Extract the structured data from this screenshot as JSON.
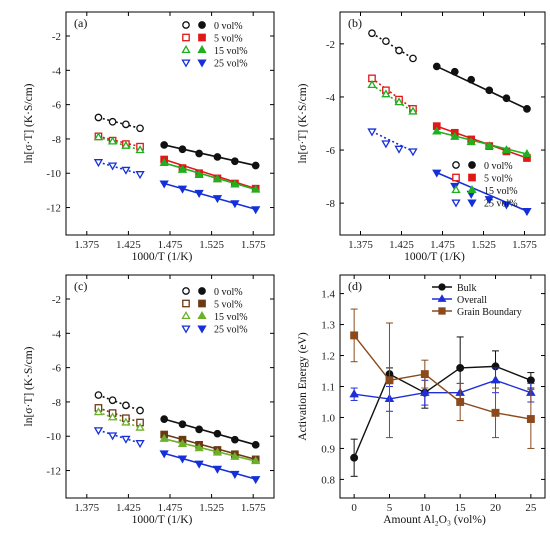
{
  "colors": {
    "0": "#111111",
    "5": "#e01818",
    "15": "#1fb01f",
    "25": "#1530d8",
    "c_5": "#6b3a14",
    "c_15": "#6db12a",
    "bulk": "#111111",
    "overall": "#1f2fd6",
    "grain": "#8b4a1c"
  },
  "chart_data": [
    {
      "id": "a",
      "type": "scatter",
      "panel_label": "(a)",
      "xlabel": "1000/T (1/K)",
      "ylabel": "ln[σ·T] (K·S/cm)",
      "xlim": [
        1.35,
        1.6
      ],
      "ylim": [
        -13.6,
        -0.6
      ],
      "xticks": [
        "1.375",
        "1.425",
        "1.475",
        "1.525",
        "1.575"
      ],
      "yticks": [
        "-2",
        "-4",
        "-6",
        "-8",
        "-10",
        "-12"
      ],
      "legend": {
        "position": "top-right",
        "entries": [
          "0 vol%",
          "5 vol%",
          "15 vol%",
          "25 vol%"
        ]
      },
      "series": [
        {
          "key": "0",
          "low_x": [
            1.389,
            1.406,
            1.422,
            1.439
          ],
          "low_y": [
            -6.75,
            -7.0,
            -7.15,
            -7.38
          ],
          "high_x": [
            1.468,
            1.49,
            1.51,
            1.532,
            1.553,
            1.578
          ],
          "high_y": [
            -8.35,
            -8.6,
            -8.85,
            -9.05,
            -9.3,
            -9.55
          ]
        },
        {
          "key": "5",
          "low_x": [
            1.389,
            1.406,
            1.422,
            1.439
          ],
          "low_y": [
            -7.85,
            -8.1,
            -8.3,
            -8.45
          ],
          "high_x": [
            1.468,
            1.49,
            1.51,
            1.532,
            1.553,
            1.578
          ],
          "high_y": [
            -9.2,
            -9.7,
            -10.0,
            -10.3,
            -10.6,
            -10.9
          ]
        },
        {
          "key": "15",
          "low_x": [
            1.389,
            1.406,
            1.422,
            1.439
          ],
          "low_y": [
            -7.9,
            -8.15,
            -8.4,
            -8.65
          ],
          "high_x": [
            1.468,
            1.49,
            1.51,
            1.532,
            1.553,
            1.578
          ],
          "high_y": [
            -9.4,
            -9.8,
            -10.1,
            -10.35,
            -10.65,
            -10.95
          ]
        },
        {
          "key": "25",
          "low_x": [
            1.389,
            1.406,
            1.422,
            1.439
          ],
          "low_y": [
            -9.35,
            -9.55,
            -9.8,
            -10.05
          ],
          "high_x": [
            1.468,
            1.49,
            1.51,
            1.532,
            1.553,
            1.578
          ],
          "high_y": [
            -10.6,
            -10.9,
            -11.15,
            -11.45,
            -11.75,
            -12.1
          ]
        }
      ]
    },
    {
      "id": "b",
      "type": "scatter",
      "panel_label": "(b)",
      "xlabel": "1000/T (1/K)",
      "ylabel": "ln[σ·T] (K·S/cm)",
      "xlim": [
        1.35,
        1.6
      ],
      "ylim": [
        -9.2,
        -0.8
      ],
      "xticks": [
        "1.375",
        "1.425",
        "1.475",
        "1.525",
        "1.575"
      ],
      "yticks": [
        "-2",
        "-4",
        "-6",
        "-8"
      ],
      "legend": {
        "position": "bottom-right",
        "entries": [
          "0 vol%",
          "5 vol%",
          "15 vol%",
          "25 vol%"
        ]
      },
      "series": [
        {
          "key": "0",
          "low_x": [
            1.389,
            1.406,
            1.422,
            1.439
          ],
          "low_y": [
            -1.6,
            -1.9,
            -2.25,
            -2.55
          ],
          "high_x": [
            1.468,
            1.49,
            1.51,
            1.532,
            1.553,
            1.578
          ],
          "high_y": [
            -2.85,
            -3.05,
            -3.35,
            -3.75,
            -4.05,
            -4.45
          ]
        },
        {
          "key": "5",
          "low_x": [
            1.389,
            1.406,
            1.422,
            1.439
          ],
          "low_y": [
            -3.3,
            -3.75,
            -4.1,
            -4.45
          ],
          "high_x": [
            1.468,
            1.49,
            1.51,
            1.532,
            1.553,
            1.578
          ],
          "high_y": [
            -5.1,
            -5.35,
            -5.6,
            -5.85,
            -6.05,
            -6.3
          ]
        },
        {
          "key": "15",
          "low_x": [
            1.389,
            1.406,
            1.422,
            1.439
          ],
          "low_y": [
            -3.55,
            -3.9,
            -4.2,
            -4.55
          ],
          "high_x": [
            1.468,
            1.49,
            1.51,
            1.532,
            1.553,
            1.578
          ],
          "high_y": [
            -5.3,
            -5.5,
            -5.7,
            -5.85,
            -6.0,
            -6.15
          ]
        },
        {
          "key": "25",
          "low_x": [
            1.389,
            1.406,
            1.422,
            1.439
          ],
          "low_y": [
            -5.3,
            -5.75,
            -5.95,
            -6.05
          ],
          "high_x": [
            1.468,
            1.49,
            1.51,
            1.532,
            1.553,
            1.578
          ],
          "high_y": [
            -6.85,
            -7.35,
            -7.65,
            -7.85,
            -8.05,
            -8.3
          ]
        }
      ]
    },
    {
      "id": "c",
      "type": "scatter",
      "panel_label": "(c)",
      "xlabel": "1000/T (1/K)",
      "ylabel": "ln[σ·T] (K·S/cm)",
      "xlim": [
        1.35,
        1.6
      ],
      "ylim": [
        -13.6,
        -0.6
      ],
      "xticks": [
        "1.375",
        "1.425",
        "1.475",
        "1.525",
        "1.575"
      ],
      "yticks": [
        "-2",
        "-4",
        "-6",
        "-8",
        "-10",
        "-12"
      ],
      "legend": {
        "position": "top-right",
        "entries": [
          "0 vol%",
          "5 vol%",
          "15 vol%",
          "25 vol%"
        ]
      },
      "series": [
        {
          "key": "0",
          "low_x": [
            1.389,
            1.406,
            1.422,
            1.439
          ],
          "low_y": [
            -7.6,
            -7.9,
            -8.2,
            -8.5
          ],
          "high_x": [
            1.468,
            1.49,
            1.51,
            1.532,
            1.553,
            1.578
          ],
          "high_y": [
            -9.0,
            -9.3,
            -9.6,
            -9.85,
            -10.2,
            -10.5
          ]
        },
        {
          "key": "5",
          "low_x": [
            1.389,
            1.406,
            1.422,
            1.439
          ],
          "low_y": [
            -8.35,
            -8.65,
            -8.95,
            -9.2
          ],
          "high_x": [
            1.468,
            1.49,
            1.51,
            1.532,
            1.553,
            1.578
          ],
          "high_y": [
            -9.9,
            -10.2,
            -10.5,
            -10.8,
            -11.05,
            -11.35
          ]
        },
        {
          "key": "15",
          "low_x": [
            1.389,
            1.406,
            1.422,
            1.439
          ],
          "low_y": [
            -8.6,
            -8.9,
            -9.2,
            -9.5
          ],
          "high_x": [
            1.468,
            1.49,
            1.51,
            1.532,
            1.553,
            1.578
          ],
          "high_y": [
            -10.15,
            -10.45,
            -10.7,
            -10.95,
            -11.2,
            -11.45
          ]
        },
        {
          "key": "25",
          "low_x": [
            1.389,
            1.406,
            1.422,
            1.439
          ],
          "low_y": [
            -9.65,
            -9.95,
            -10.15,
            -10.4
          ],
          "high_x": [
            1.468,
            1.49,
            1.51,
            1.532,
            1.553,
            1.578
          ],
          "high_y": [
            -11.0,
            -11.3,
            -11.6,
            -11.9,
            -12.2,
            -12.5
          ]
        }
      ]
    },
    {
      "id": "d",
      "type": "line",
      "panel_label": "(d)",
      "xlabel": "Amount Al₂O₃ (vol%)",
      "ylabel": "Activation Energy (eV)",
      "xlim": [
        -2,
        27
      ],
      "ylim": [
        0.74,
        1.46
      ],
      "xticks": [
        "0",
        "5",
        "10",
        "15",
        "20",
        "25"
      ],
      "yticks": [
        "0.8",
        "0.9",
        "1.0",
        "1.1",
        "1.2",
        "1.3",
        "1.4"
      ],
      "x": [
        0,
        5,
        10,
        15,
        20,
        25
      ],
      "legend": {
        "position": "top-right"
      },
      "series": [
        {
          "name": "Bulk",
          "key": "bulk",
          "marker": "circle",
          "values": [
            0.87,
            1.14,
            1.08,
            1.16,
            1.165,
            1.12
          ],
          "err": [
            0.06,
            0.02,
            0.05,
            0.1,
            0.05,
            0.025
          ]
        },
        {
          "name": "Overall",
          "key": "overall",
          "marker": "triangle",
          "values": [
            1.075,
            1.06,
            1.08,
            1.08,
            1.12,
            1.08
          ],
          "err": [
            0.02,
            0.04,
            0.04,
            0.03,
            0.04,
            0.03
          ]
        },
        {
          "name": "Grain Boundary",
          "key": "grain",
          "marker": "square",
          "values": [
            1.265,
            1.12,
            1.14,
            1.05,
            1.015,
            0.995
          ],
          "err": [
            0.085,
            0.185,
            0.045,
            0.06,
            0.08,
            0.095
          ]
        }
      ]
    }
  ]
}
